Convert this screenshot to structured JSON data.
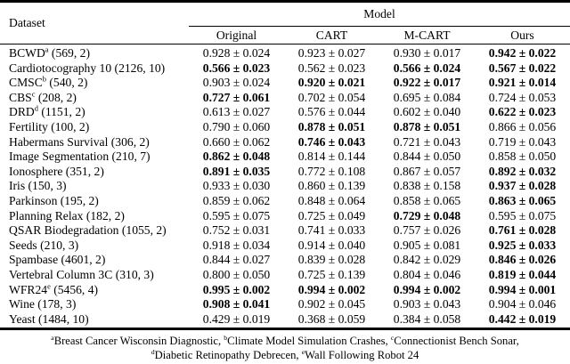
{
  "table": {
    "dataset_header": "Dataset",
    "model_header": "Model",
    "columns": [
      "Original",
      "CART",
      "M-CART",
      "Ours"
    ],
    "rows": [
      {
        "dataset": "BCWD",
        "sup": "a",
        "meta": "(569, 2)",
        "values": [
          {
            "text": "0.928 ± 0.024",
            "bold": false
          },
          {
            "text": "0.923 ± 0.027",
            "bold": false
          },
          {
            "text": "0.930 ± 0.017",
            "bold": false
          },
          {
            "text": "0.942 ± 0.022",
            "bold": true
          }
        ]
      },
      {
        "dataset": "Cardiotocography 10",
        "sup": "",
        "meta": "(2126, 10)",
        "values": [
          {
            "text": "0.566 ± 0.023",
            "bold": true
          },
          {
            "text": "0.562 ± 0.023",
            "bold": false
          },
          {
            "text": "0.566 ± 0.024",
            "bold": true
          },
          {
            "text": "0.567 ± 0.022",
            "bold": true
          }
        ]
      },
      {
        "dataset": "CMSC",
        "sup": "b",
        "meta": "(540, 2)",
        "values": [
          {
            "text": "0.903 ± 0.024",
            "bold": false
          },
          {
            "text": "0.920 ± 0.021",
            "bold": true
          },
          {
            "text": "0.922 ± 0.017",
            "bold": true
          },
          {
            "text": "0.921 ± 0.014",
            "bold": true
          }
        ]
      },
      {
        "dataset": "CBS",
        "sup": "c",
        "meta": "(208, 2)",
        "values": [
          {
            "text": "0.727 ± 0.061",
            "bold": true
          },
          {
            "text": "0.702 ± 0.054",
            "bold": false
          },
          {
            "text": "0.695 ± 0.084",
            "bold": false
          },
          {
            "text": "0.724 ± 0.053",
            "bold": false
          }
        ]
      },
      {
        "dataset": "DRD",
        "sup": "d",
        "meta": "(1151, 2)",
        "values": [
          {
            "text": "0.613 ± 0.027",
            "bold": false
          },
          {
            "text": "0.576 ± 0.044",
            "bold": false
          },
          {
            "text": "0.602 ± 0.040",
            "bold": false
          },
          {
            "text": "0.622 ± 0.023",
            "bold": true
          }
        ]
      },
      {
        "dataset": "Fertility",
        "sup": "",
        "meta": "(100, 2)",
        "values": [
          {
            "text": "0.790 ± 0.060",
            "bold": false
          },
          {
            "text": "0.878 ± 0.051",
            "bold": true
          },
          {
            "text": "0.878 ± 0.051",
            "bold": true
          },
          {
            "text": "0.866 ± 0.056",
            "bold": false
          }
        ]
      },
      {
        "dataset": "Habermans Survival",
        "sup": "",
        "meta": "(306, 2)",
        "values": [
          {
            "text": "0.660 ± 0.062",
            "bold": false
          },
          {
            "text": "0.746 ± 0.043",
            "bold": true
          },
          {
            "text": "0.721 ± 0.043",
            "bold": false
          },
          {
            "text": "0.719 ± 0.043",
            "bold": false
          }
        ]
      },
      {
        "dataset": "Image Segmentation",
        "sup": "",
        "meta": "(210, 7)",
        "values": [
          {
            "text": "0.862 ± 0.048",
            "bold": true
          },
          {
            "text": "0.814 ± 0.144",
            "bold": false
          },
          {
            "text": "0.844 ± 0.050",
            "bold": false
          },
          {
            "text": "0.858 ± 0.050",
            "bold": false
          }
        ]
      },
      {
        "dataset": "Ionosphere",
        "sup": "",
        "meta": "(351, 2)",
        "values": [
          {
            "text": "0.891 ± 0.035",
            "bold": true
          },
          {
            "text": "0.772 ± 0.108",
            "bold": false
          },
          {
            "text": "0.867 ± 0.057",
            "bold": false
          },
          {
            "text": "0.892 ± 0.032",
            "bold": true
          }
        ]
      },
      {
        "dataset": "Iris",
        "sup": "",
        "meta": "(150, 3)",
        "values": [
          {
            "text": "0.933 ± 0.030",
            "bold": false
          },
          {
            "text": "0.860 ± 0.139",
            "bold": false
          },
          {
            "text": "0.838 ± 0.158",
            "bold": false
          },
          {
            "text": "0.937 ± 0.028",
            "bold": true
          }
        ]
      },
      {
        "dataset": "Parkinson",
        "sup": "",
        "meta": "(195, 2)",
        "values": [
          {
            "text": "0.859 ± 0.062",
            "bold": false
          },
          {
            "text": "0.848 ± 0.064",
            "bold": false
          },
          {
            "text": "0.858 ± 0.065",
            "bold": false
          },
          {
            "text": "0.863 ± 0.065",
            "bold": true
          }
        ]
      },
      {
        "dataset": "Planning Relax",
        "sup": "",
        "meta": "(182, 2)",
        "values": [
          {
            "text": "0.595 ± 0.075",
            "bold": false
          },
          {
            "text": "0.725 ± 0.049",
            "bold": false
          },
          {
            "text": "0.729 ± 0.048",
            "bold": true
          },
          {
            "text": "0.595 ± 0.075",
            "bold": false
          }
        ]
      },
      {
        "dataset": "QSAR Biodegradation",
        "sup": "",
        "meta": "(1055, 2)",
        "values": [
          {
            "text": "0.752 ± 0.031",
            "bold": false
          },
          {
            "text": "0.741 ± 0.033",
            "bold": false
          },
          {
            "text": "0.757 ± 0.026",
            "bold": false
          },
          {
            "text": "0.761 ± 0.028",
            "bold": true
          }
        ]
      },
      {
        "dataset": "Seeds",
        "sup": "",
        "meta": "(210, 3)",
        "values": [
          {
            "text": "0.918 ± 0.034",
            "bold": false
          },
          {
            "text": "0.914 ± 0.040",
            "bold": false
          },
          {
            "text": "0.905 ± 0.081",
            "bold": false
          },
          {
            "text": "0.925 ± 0.033",
            "bold": true
          }
        ]
      },
      {
        "dataset": "Spambase",
        "sup": "",
        "meta": "(4601, 2)",
        "values": [
          {
            "text": "0.844 ± 0.027",
            "bold": false
          },
          {
            "text": "0.839 ± 0.028",
            "bold": false
          },
          {
            "text": "0.842 ± 0.029",
            "bold": false
          },
          {
            "text": "0.846 ± 0.026",
            "bold": true
          }
        ]
      },
      {
        "dataset": "Vertebral Column 3C",
        "sup": "",
        "meta": "(310, 3)",
        "values": [
          {
            "text": "0.800 ± 0.050",
            "bold": false
          },
          {
            "text": "0.725 ± 0.139",
            "bold": false
          },
          {
            "text": "0.804 ± 0.046",
            "bold": false
          },
          {
            "text": "0.819 ± 0.044",
            "bold": true
          }
        ]
      },
      {
        "dataset": "WFR24",
        "sup": "e",
        "meta": "(5456, 4)",
        "values": [
          {
            "text": "0.995 ± 0.002",
            "bold": true
          },
          {
            "text": "0.994 ± 0.002",
            "bold": true
          },
          {
            "text": "0.994 ± 0.002",
            "bold": true
          },
          {
            "text": "0.994 ± 0.001",
            "bold": true
          }
        ]
      },
      {
        "dataset": "Wine",
        "sup": "",
        "meta": "(178, 3)",
        "values": [
          {
            "text": "0.908 ± 0.041",
            "bold": true
          },
          {
            "text": "0.902 ± 0.045",
            "bold": false
          },
          {
            "text": "0.903 ± 0.043",
            "bold": false
          },
          {
            "text": "0.904 ± 0.046",
            "bold": false
          }
        ]
      },
      {
        "dataset": "Yeast",
        "sup": "",
        "meta": "(1484, 10)",
        "values": [
          {
            "text": "0.429 ± 0.019",
            "bold": false
          },
          {
            "text": "0.368 ± 0.059",
            "bold": false
          },
          {
            "text": "0.384 ± 0.058",
            "bold": false
          },
          {
            "text": "0.442 ± 0.019",
            "bold": true
          }
        ]
      }
    ]
  },
  "footnotes": {
    "line1": [
      {
        "sup": "a",
        "text": "Breast Cancer Wisconsin Diagnostic, "
      },
      {
        "sup": "b",
        "text": "Climate Model Simulation Crashes, "
      },
      {
        "sup": "c",
        "text": "Connectionist Bench Sonar,"
      }
    ],
    "line2": [
      {
        "sup": "d",
        "text": "Diabetic Retinopathy Debrecen, "
      },
      {
        "sup": "e",
        "text": "Wall Following Robot 24"
      }
    ]
  }
}
